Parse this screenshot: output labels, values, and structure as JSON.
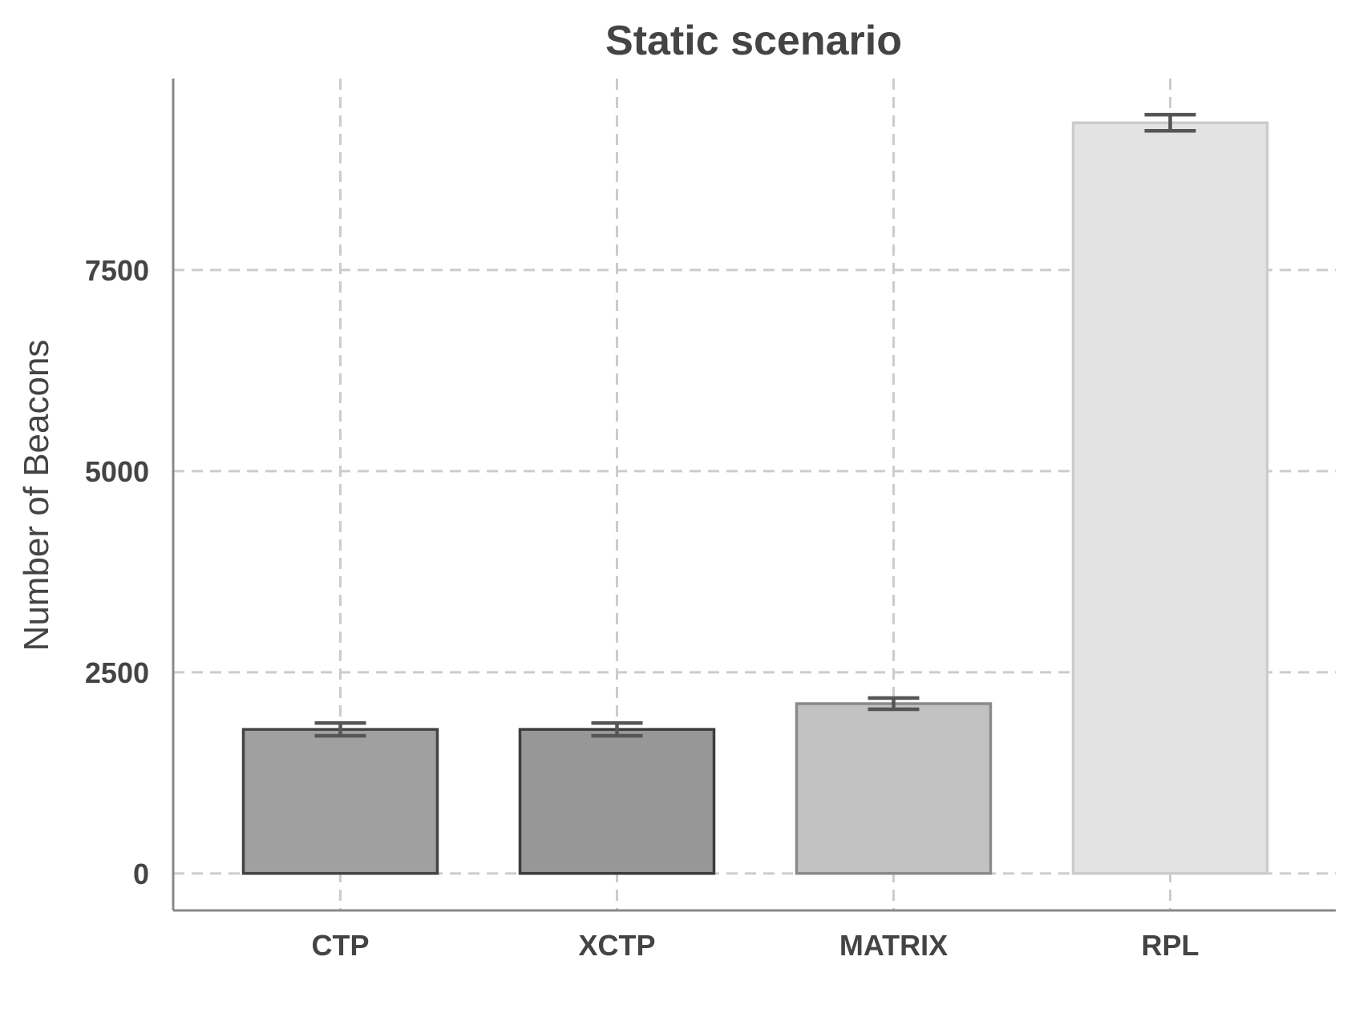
{
  "chart_data": {
    "type": "bar",
    "title": "Static scenario",
    "xlabel": "",
    "ylabel": "Number of Beacons",
    "categories": [
      "CTP",
      "XCTP",
      "MATRIX",
      "RPL"
    ],
    "values": [
      1790,
      1790,
      2110,
      9330
    ],
    "error_low": [
      1710,
      1710,
      2040,
      9230
    ],
    "error_high": [
      1870,
      1870,
      2180,
      9430
    ],
    "yticks": [
      0,
      2500,
      5000,
      7500
    ],
    "ylim": [
      -460,
      9880
    ],
    "grid": true,
    "bar_colors": [
      "#a0a0a0",
      "#979797",
      "#c2c2c2",
      "#e3e3e3"
    ],
    "edge_colors": [
      "#444444",
      "#3c3c3c",
      "#8a8a8a",
      "#cccccc"
    ],
    "error_color": "#555555"
  }
}
